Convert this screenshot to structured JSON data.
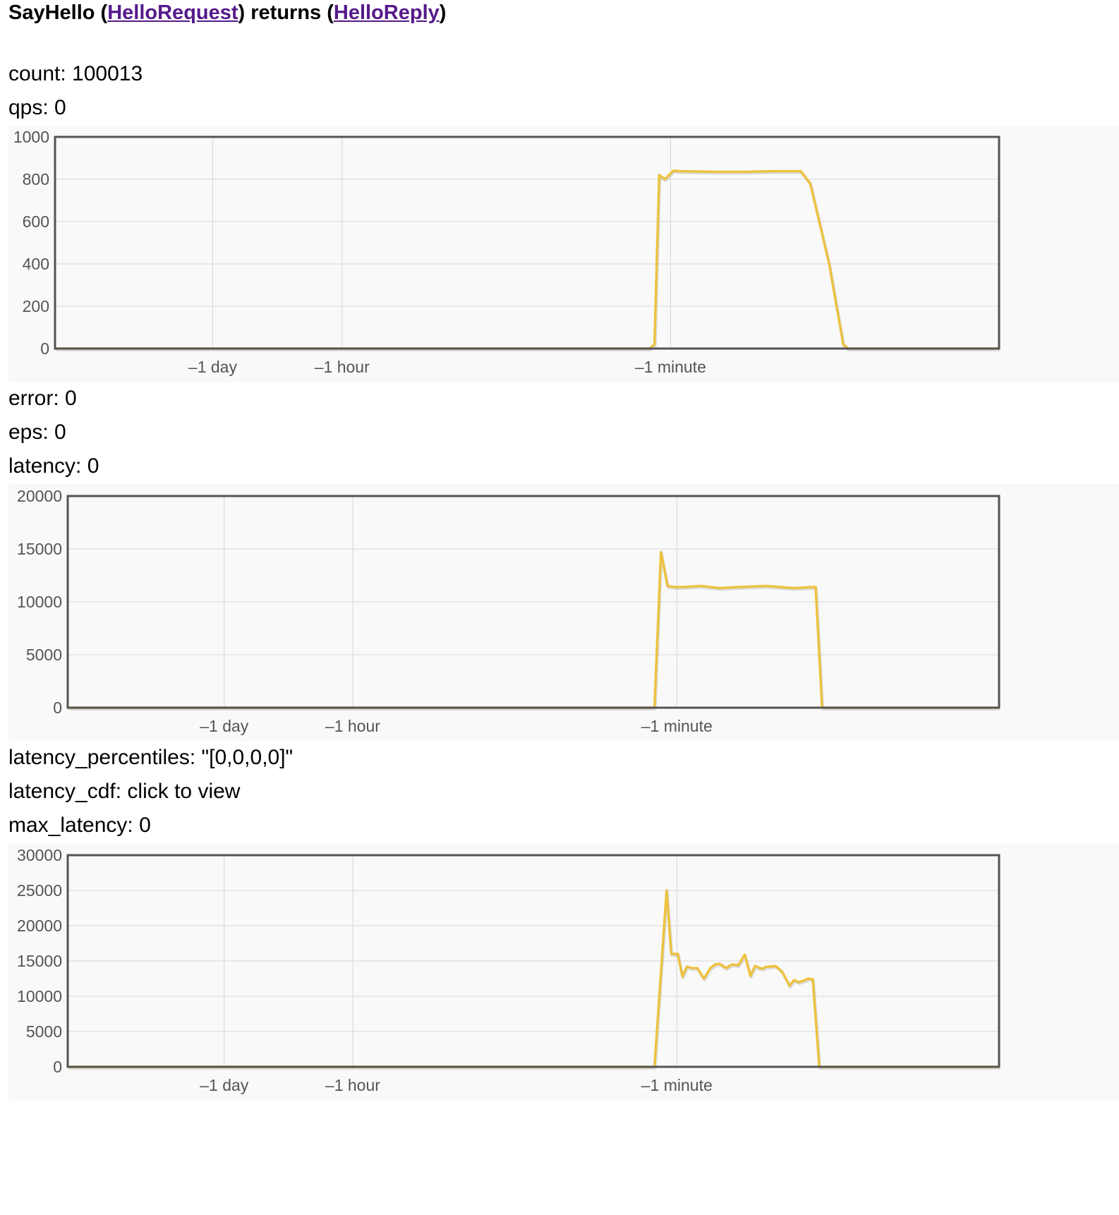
{
  "header": {
    "method": "SayHello",
    "open_paren_1": " (",
    "request_type": "HelloRequest",
    "mid_text": ") returns (",
    "reply_type": "HelloReply",
    "close_paren": ")"
  },
  "stats": {
    "count": "count: 100013",
    "qps": "qps: 0",
    "error": "error: 0",
    "eps": "eps: 0",
    "latency": "latency: 0",
    "latency_percentiles": "latency_percentiles: \"[0,0,0,0]\"",
    "latency_cdf": "latency_cdf: click to view",
    "max_latency": "max_latency: 0"
  },
  "colors": {
    "series": "#edc240",
    "grid": "#d6d6d6",
    "axis_text": "#545454",
    "frame": "#545454",
    "link": "#551a8b"
  },
  "chart_data": [
    {
      "type": "line",
      "id": "qps",
      "ylim": [
        0,
        1000
      ],
      "yticks": [
        "1000",
        "800",
        "600",
        "400",
        "200",
        "0"
      ],
      "xticks": [
        "–1 day",
        "–1 hour",
        "–1 minute"
      ],
      "grid": true,
      "series": [
        {
          "x": [
            0,
            0.63,
            0.635,
            0.64,
            0.646,
            0.655,
            0.662,
            0.7,
            0.73,
            0.76,
            0.79,
            0.8,
            0.82,
            0.835,
            0.84,
            1.0
          ],
          "y": [
            0,
            0,
            20,
            820,
            800,
            840,
            838,
            835,
            835,
            838,
            838,
            780,
            400,
            20,
            0,
            0
          ]
        }
      ]
    },
    {
      "type": "line",
      "id": "latency",
      "ylim": [
        0,
        20000
      ],
      "yticks": [
        "20000",
        "15000",
        "10000",
        "5000",
        "0"
      ],
      "xticks": [
        "–1 day",
        "–1 hour",
        "–1 minute"
      ],
      "grid": true,
      "series": [
        {
          "x": [
            0,
            0.63,
            0.63,
            0.637,
            0.644,
            0.652,
            0.66,
            0.68,
            0.7,
            0.72,
            0.75,
            0.78,
            0.8,
            0.803,
            0.81,
            1.0
          ],
          "y": [
            0,
            0,
            0,
            14700,
            11500,
            11400,
            11400,
            11500,
            11300,
            11400,
            11500,
            11300,
            11400,
            11400,
            0,
            0
          ]
        }
      ]
    },
    {
      "type": "line",
      "id": "max_latency",
      "ylim": [
        0,
        30000
      ],
      "yticks": [
        "30000",
        "25000",
        "20000",
        "15000",
        "10000",
        "5000",
        "0"
      ],
      "xticks": [
        "–1 day",
        "–1 hour",
        "–1 minute"
      ],
      "grid": true,
      "series": [
        {
          "x": [
            0,
            0.63,
            0.643,
            0.648,
            0.655,
            0.66,
            0.665,
            0.67,
            0.676,
            0.683,
            0.69,
            0.695,
            0.7,
            0.707,
            0.713,
            0.72,
            0.727,
            0.733,
            0.738,
            0.743,
            0.746,
            0.75,
            0.755,
            0.76,
            0.767,
            0.775,
            0.78,
            0.785,
            0.79,
            0.795,
            0.8,
            0.8,
            0.807,
            1.0
          ],
          "y": [
            0,
            0,
            25000,
            16000,
            16000,
            12800,
            14200,
            14000,
            14000,
            12500,
            14000,
            14500,
            14600,
            14000,
            14500,
            14400,
            15900,
            12900,
            14300,
            14000,
            13900,
            14200,
            14200,
            14300,
            13500,
            11500,
            12300,
            12000,
            12200,
            12500,
            12400,
            12400,
            0,
            0
          ]
        }
      ]
    }
  ]
}
